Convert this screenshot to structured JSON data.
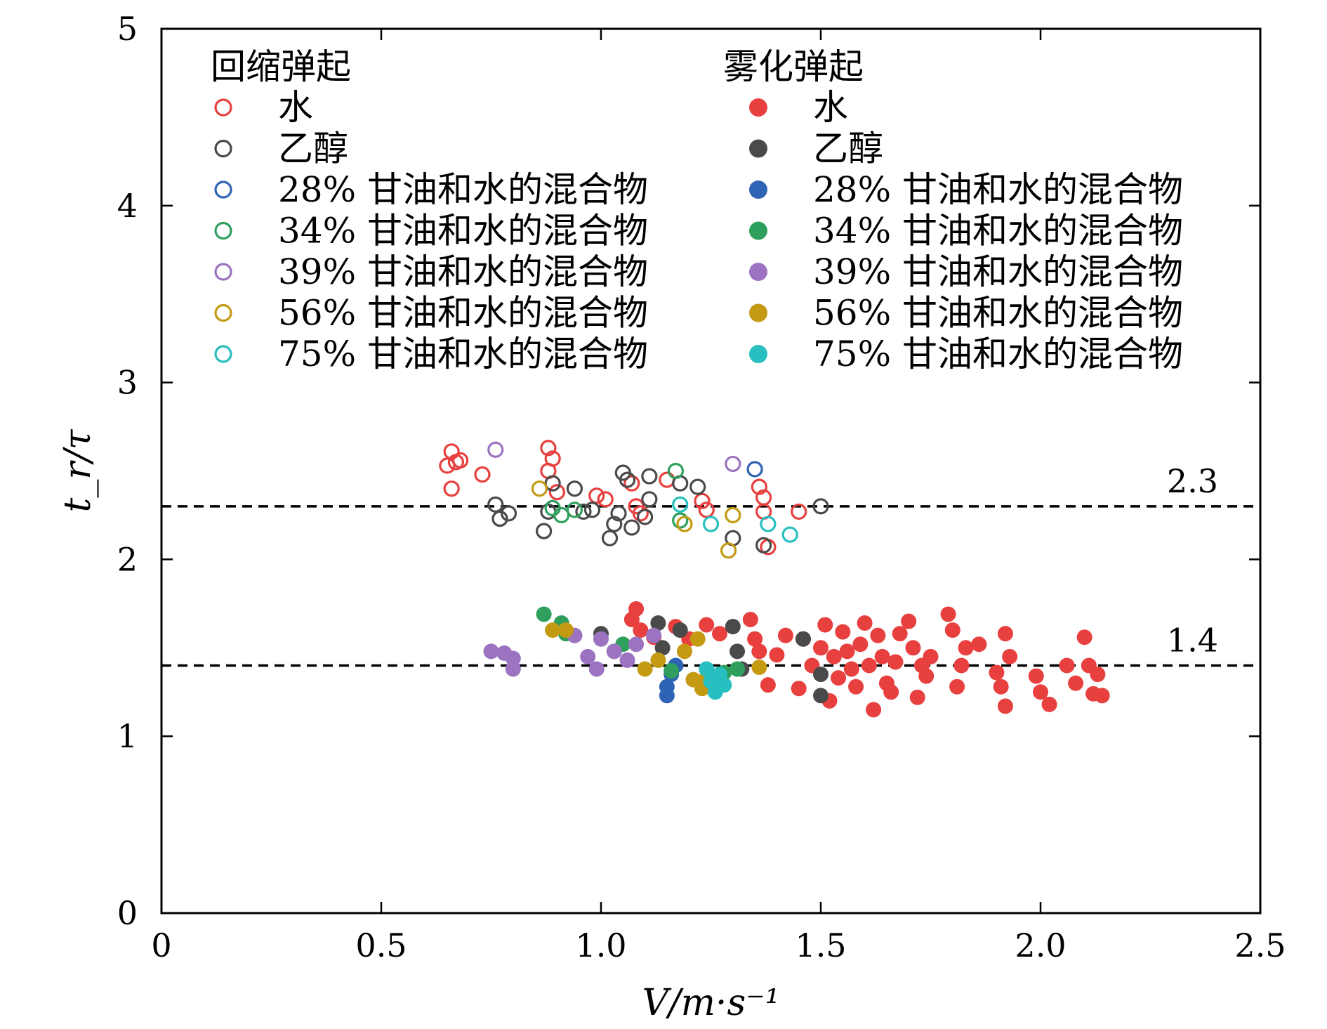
{
  "chart_data": {
    "type": "scatter",
    "xlabel": "V/m·s⁻¹",
    "ylabel": "t_r/τ",
    "xlim": [
      0,
      2.5
    ],
    "ylim": [
      0,
      5
    ],
    "x_ticks": [
      "0",
      "0.5",
      "1.0",
      "1.5",
      "2.0",
      "2.5"
    ],
    "y_ticks": [
      "0",
      "1",
      "2",
      "3",
      "4",
      "5"
    ],
    "grid": false,
    "legend_placement": "top",
    "legend_groups": {
      "open": "回缩弹起",
      "filled": "雾化弹起"
    },
    "reference_lines": [
      {
        "y": 2.3,
        "label": "2.3",
        "style": "dashed"
      },
      {
        "y": 1.4,
        "label": "1.4",
        "style": "dashed"
      }
    ],
    "series": [
      {
        "name": "水",
        "group": "回缩弹起",
        "marker": "open",
        "color": "#e8403f",
        "points": [
          [
            0.65,
            2.53
          ],
          [
            0.66,
            2.4
          ],
          [
            0.66,
            2.61
          ],
          [
            0.67,
            2.55
          ],
          [
            0.68,
            2.56
          ],
          [
            0.73,
            2.48
          ],
          [
            0.88,
            2.63
          ],
          [
            0.89,
            2.57
          ],
          [
            0.88,
            2.5
          ],
          [
            0.9,
            2.38
          ],
          [
            0.99,
            2.36
          ],
          [
            1.01,
            2.34
          ],
          [
            1.07,
            2.43
          ],
          [
            1.08,
            2.3
          ],
          [
            1.09,
            2.26
          ],
          [
            1.15,
            2.45
          ],
          [
            1.23,
            2.33
          ],
          [
            1.24,
            2.28
          ],
          [
            1.36,
            2.41
          ],
          [
            1.37,
            2.35
          ],
          [
            1.37,
            2.27
          ],
          [
            1.38,
            2.07
          ],
          [
            1.45,
            2.27
          ]
        ]
      },
      {
        "name": "乙醇",
        "group": "回缩弹起",
        "marker": "open",
        "color": "#4a4a4a",
        "points": [
          [
            0.76,
            2.31
          ],
          [
            0.77,
            2.23
          ],
          [
            0.79,
            2.26
          ],
          [
            0.87,
            2.16
          ],
          [
            0.88,
            2.27
          ],
          [
            0.89,
            2.43
          ],
          [
            0.94,
            2.4
          ],
          [
            0.96,
            2.27
          ],
          [
            0.98,
            2.28
          ],
          [
            1.02,
            2.12
          ],
          [
            1.03,
            2.2
          ],
          [
            1.04,
            2.26
          ],
          [
            1.05,
            2.49
          ],
          [
            1.06,
            2.45
          ],
          [
            1.07,
            2.18
          ],
          [
            1.1,
            2.24
          ],
          [
            1.11,
            2.34
          ],
          [
            1.11,
            2.47
          ],
          [
            1.18,
            2.43
          ],
          [
            1.22,
            2.41
          ],
          [
            1.3,
            2.12
          ],
          [
            1.37,
            2.08
          ],
          [
            1.5,
            2.3
          ]
        ]
      },
      {
        "name": "28% 甘油和水的混合物",
        "group": "回缩弹起",
        "marker": "open",
        "color": "#2f63b4",
        "points": [
          [
            1.35,
            2.51
          ]
        ]
      },
      {
        "name": "34% 甘油和水的混合物",
        "group": "回缩弹起",
        "marker": "open",
        "color": "#2e9f5d",
        "points": [
          [
            0.89,
            2.29
          ],
          [
            0.91,
            2.25
          ],
          [
            0.94,
            2.28
          ],
          [
            1.17,
            2.5
          ],
          [
            1.18,
            2.22
          ]
        ]
      },
      {
        "name": "39% 甘油和水的混合物",
        "group": "回缩弹起",
        "marker": "open",
        "color": "#9b73c0",
        "points": [
          [
            0.76,
            2.62
          ],
          [
            1.3,
            2.54
          ]
        ]
      },
      {
        "name": "56% 甘油和水的混合物",
        "group": "回缩弹起",
        "marker": "open",
        "color": "#c39a12",
        "points": [
          [
            0.86,
            2.4
          ],
          [
            1.19,
            2.2
          ],
          [
            1.29,
            2.05
          ],
          [
            1.3,
            2.25
          ]
        ]
      },
      {
        "name": "75% 甘油和水的混合物",
        "group": "回缩弹起",
        "marker": "open",
        "color": "#27bfbf",
        "points": [
          [
            1.18,
            2.31
          ],
          [
            1.25,
            2.2
          ],
          [
            1.38,
            2.2
          ],
          [
            1.43,
            2.14
          ]
        ]
      },
      {
        "name": "水",
        "group": "雾化弹起",
        "marker": "filled",
        "color": "#e8403f",
        "points": [
          [
            1.07,
            1.66
          ],
          [
            1.08,
            1.72
          ],
          [
            1.09,
            1.6
          ],
          [
            1.12,
            1.56
          ],
          [
            1.17,
            1.62
          ],
          [
            1.2,
            1.55
          ],
          [
            1.24,
            1.63
          ],
          [
            1.27,
            1.58
          ],
          [
            1.34,
            1.66
          ],
          [
            1.35,
            1.55
          ],
          [
            1.36,
            1.48
          ],
          [
            1.38,
            1.29
          ],
          [
            1.4,
            1.46
          ],
          [
            1.42,
            1.57
          ],
          [
            1.45,
            1.27
          ],
          [
            1.46,
            1.55
          ],
          [
            1.48,
            1.4
          ],
          [
            1.5,
            1.5
          ],
          [
            1.51,
            1.63
          ],
          [
            1.52,
            1.2
          ],
          [
            1.53,
            1.45
          ],
          [
            1.54,
            1.33
          ],
          [
            1.55,
            1.59
          ],
          [
            1.56,
            1.48
          ],
          [
            1.57,
            1.38
          ],
          [
            1.58,
            1.28
          ],
          [
            1.59,
            1.52
          ],
          [
            1.6,
            1.64
          ],
          [
            1.61,
            1.4
          ],
          [
            1.62,
            1.15
          ],
          [
            1.63,
            1.57
          ],
          [
            1.64,
            1.45
          ],
          [
            1.65,
            1.3
          ],
          [
            1.66,
            1.25
          ],
          [
            1.67,
            1.42
          ],
          [
            1.68,
            1.58
          ],
          [
            1.7,
            1.65
          ],
          [
            1.71,
            1.5
          ],
          [
            1.72,
            1.22
          ],
          [
            1.73,
            1.4
          ],
          [
            1.74,
            1.34
          ],
          [
            1.75,
            1.45
          ],
          [
            1.79,
            1.69
          ],
          [
            1.8,
            1.6
          ],
          [
            1.81,
            1.28
          ],
          [
            1.82,
            1.4
          ],
          [
            1.83,
            1.5
          ],
          [
            1.86,
            1.52
          ],
          [
            1.9,
            1.36
          ],
          [
            1.91,
            1.28
          ],
          [
            1.92,
            1.58
          ],
          [
            1.92,
            1.17
          ],
          [
            1.93,
            1.45
          ],
          [
            1.99,
            1.34
          ],
          [
            2.0,
            1.25
          ],
          [
            2.02,
            1.18
          ],
          [
            2.06,
            1.4
          ],
          [
            2.08,
            1.3
          ],
          [
            2.1,
            1.56
          ],
          [
            2.11,
            1.4
          ],
          [
            2.12,
            1.24
          ],
          [
            2.13,
            1.35
          ],
          [
            2.14,
            1.23
          ]
        ]
      },
      {
        "name": "乙醇",
        "group": "雾化弹起",
        "marker": "filled",
        "color": "#4a4a4a",
        "points": [
          [
            1.0,
            1.58
          ],
          [
            1.13,
            1.64
          ],
          [
            1.14,
            1.5
          ],
          [
            1.18,
            1.6
          ],
          [
            1.3,
            1.62
          ],
          [
            1.31,
            1.48
          ],
          [
            1.32,
            1.38
          ],
          [
            1.46,
            1.55
          ],
          [
            1.5,
            1.35
          ],
          [
            1.5,
            1.23
          ]
        ]
      },
      {
        "name": "28% 甘油和水的混合物",
        "group": "雾化弹起",
        "marker": "filled",
        "color": "#2f63b4",
        "points": [
          [
            1.15,
            1.23
          ],
          [
            1.15,
            1.28
          ],
          [
            1.16,
            1.35
          ],
          [
            1.17,
            1.4
          ]
        ]
      },
      {
        "name": "34% 甘油和水的混合物",
        "group": "雾化弹起",
        "marker": "filled",
        "color": "#2e9f5d",
        "points": [
          [
            0.87,
            1.69
          ],
          [
            0.91,
            1.64
          ],
          [
            0.92,
            1.58
          ],
          [
            1.03,
            1.48
          ],
          [
            1.05,
            1.52
          ],
          [
            1.16,
            1.37
          ],
          [
            1.28,
            1.36
          ],
          [
            1.31,
            1.38
          ]
        ]
      },
      {
        "name": "39% 甘油和水的混合物",
        "group": "雾化弹起",
        "marker": "filled",
        "color": "#9b73c0",
        "points": [
          [
            0.75,
            1.48
          ],
          [
            0.78,
            1.47
          ],
          [
            0.8,
            1.44
          ],
          [
            0.8,
            1.38
          ],
          [
            0.94,
            1.57
          ],
          [
            0.97,
            1.45
          ],
          [
            0.99,
            1.38
          ],
          [
            1.0,
            1.55
          ],
          [
            1.03,
            1.48
          ],
          [
            1.06,
            1.43
          ],
          [
            1.08,
            1.52
          ],
          [
            1.12,
            1.57
          ]
        ]
      },
      {
        "name": "56% 甘油和水的混合物",
        "group": "雾化弹起",
        "marker": "filled",
        "color": "#c39a12",
        "points": [
          [
            0.89,
            1.6
          ],
          [
            0.92,
            1.6
          ],
          [
            1.1,
            1.38
          ],
          [
            1.13,
            1.43
          ],
          [
            1.19,
            1.48
          ],
          [
            1.21,
            1.32
          ],
          [
            1.22,
            1.55
          ],
          [
            1.23,
            1.27
          ],
          [
            1.24,
            1.33
          ],
          [
            1.36,
            1.39
          ]
        ]
      },
      {
        "name": "75% 甘油和水的混合物",
        "group": "雾化弹起",
        "marker": "filled",
        "color": "#27bfbf",
        "points": [
          [
            1.24,
            1.38
          ],
          [
            1.25,
            1.31
          ],
          [
            1.26,
            1.25
          ],
          [
            1.27,
            1.35
          ],
          [
            1.28,
            1.29
          ]
        ]
      }
    ]
  }
}
